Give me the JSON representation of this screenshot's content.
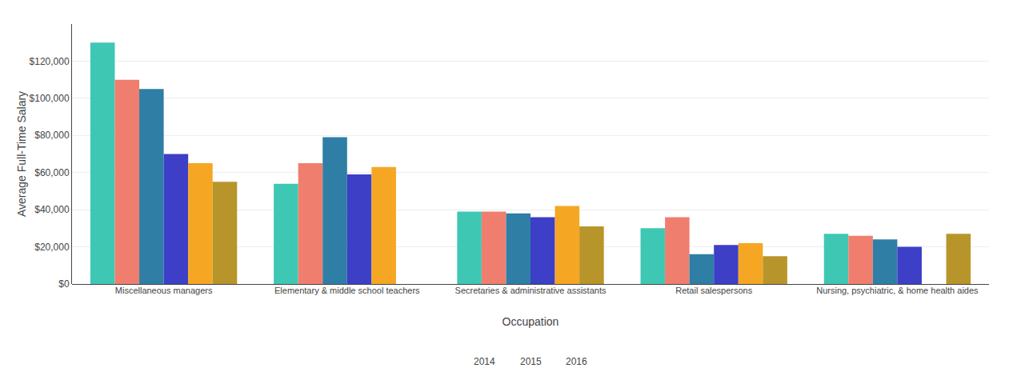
{
  "chart_data": {
    "type": "bar",
    "xlabel": "Occupation",
    "ylabel": "Average Full-Time Salary",
    "categories": [
      "Miscellaneous managers",
      "Elementary & middle school teachers",
      "Secretaries & administrative assistants",
      "Retail salespersons",
      "Nursing, psychiatric, & home health aides"
    ],
    "series": [
      {
        "color": "#3EC8B4",
        "values": [
          130000,
          54000,
          39000,
          30000,
          27000
        ]
      },
      {
        "color": "#F07E6E",
        "values": [
          110000,
          65000,
          39000,
          36000,
          26000
        ]
      },
      {
        "color": "#2F7EA6",
        "values": [
          105000,
          79000,
          38000,
          16000,
          24000
        ]
      },
      {
        "color": "#3D3FC7",
        "values": [
          70000,
          59000,
          36000,
          21000,
          20000
        ]
      },
      {
        "color": "#F5A623",
        "values": [
          65000,
          63000,
          42000,
          22000,
          0
        ]
      },
      {
        "color": "#B8952A",
        "values": [
          55000,
          0,
          31000,
          15000,
          27000
        ]
      }
    ],
    "ylim": [
      0,
      140000
    ],
    "yticks": [
      {
        "value": 0,
        "label": "$0"
      },
      {
        "value": 20000,
        "label": "$20,000"
      },
      {
        "value": 40000,
        "label": "$40,000"
      },
      {
        "value": 60000,
        "label": "$60,000"
      },
      {
        "value": 80000,
        "label": "$80,000"
      },
      {
        "value": 100000,
        "label": "$100,000"
      },
      {
        "value": 120000,
        "label": "$120,000"
      }
    ],
    "grid": true,
    "annotations": [
      "2014",
      "2015",
      "2016"
    ]
  }
}
